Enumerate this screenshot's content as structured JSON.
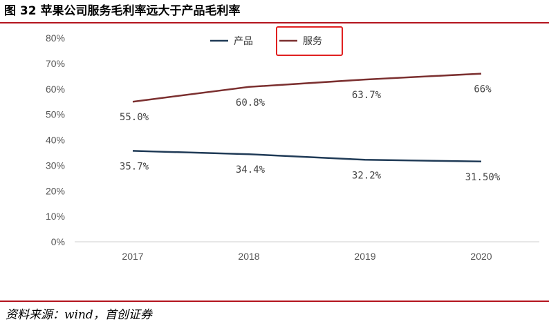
{
  "header": {
    "title": "图 32 苹果公司服务毛利率远大于产品毛利率"
  },
  "footer": {
    "source": "资料来源：wind，首创证券"
  },
  "chart_data": {
    "type": "line",
    "title": "",
    "xlabel": "",
    "ylabel": "",
    "categories": [
      "2017",
      "2018",
      "2019",
      "2020"
    ],
    "ylim": [
      0,
      80
    ],
    "yticks": [
      "0%",
      "10%",
      "20%",
      "30%",
      "40%",
      "50%",
      "60%",
      "70%",
      "80%"
    ],
    "grid": false,
    "legend_position": "top-center",
    "series": [
      {
        "name": "产品",
        "color": "#1f3a56",
        "values": [
          35.7,
          34.4,
          32.2,
          31.5
        ],
        "labels": [
          "35.7%",
          "34.4%",
          "32.2%",
          "31.50%"
        ]
      },
      {
        "name": "服务",
        "color": "#7b2f2f",
        "values": [
          55.0,
          60.8,
          63.7,
          66.0
        ],
        "labels": [
          "55.0%",
          "60.8%",
          "63.7%",
          "66%"
        ]
      }
    ],
    "highlight": {
      "target": "服务",
      "color": "#e02020"
    }
  }
}
